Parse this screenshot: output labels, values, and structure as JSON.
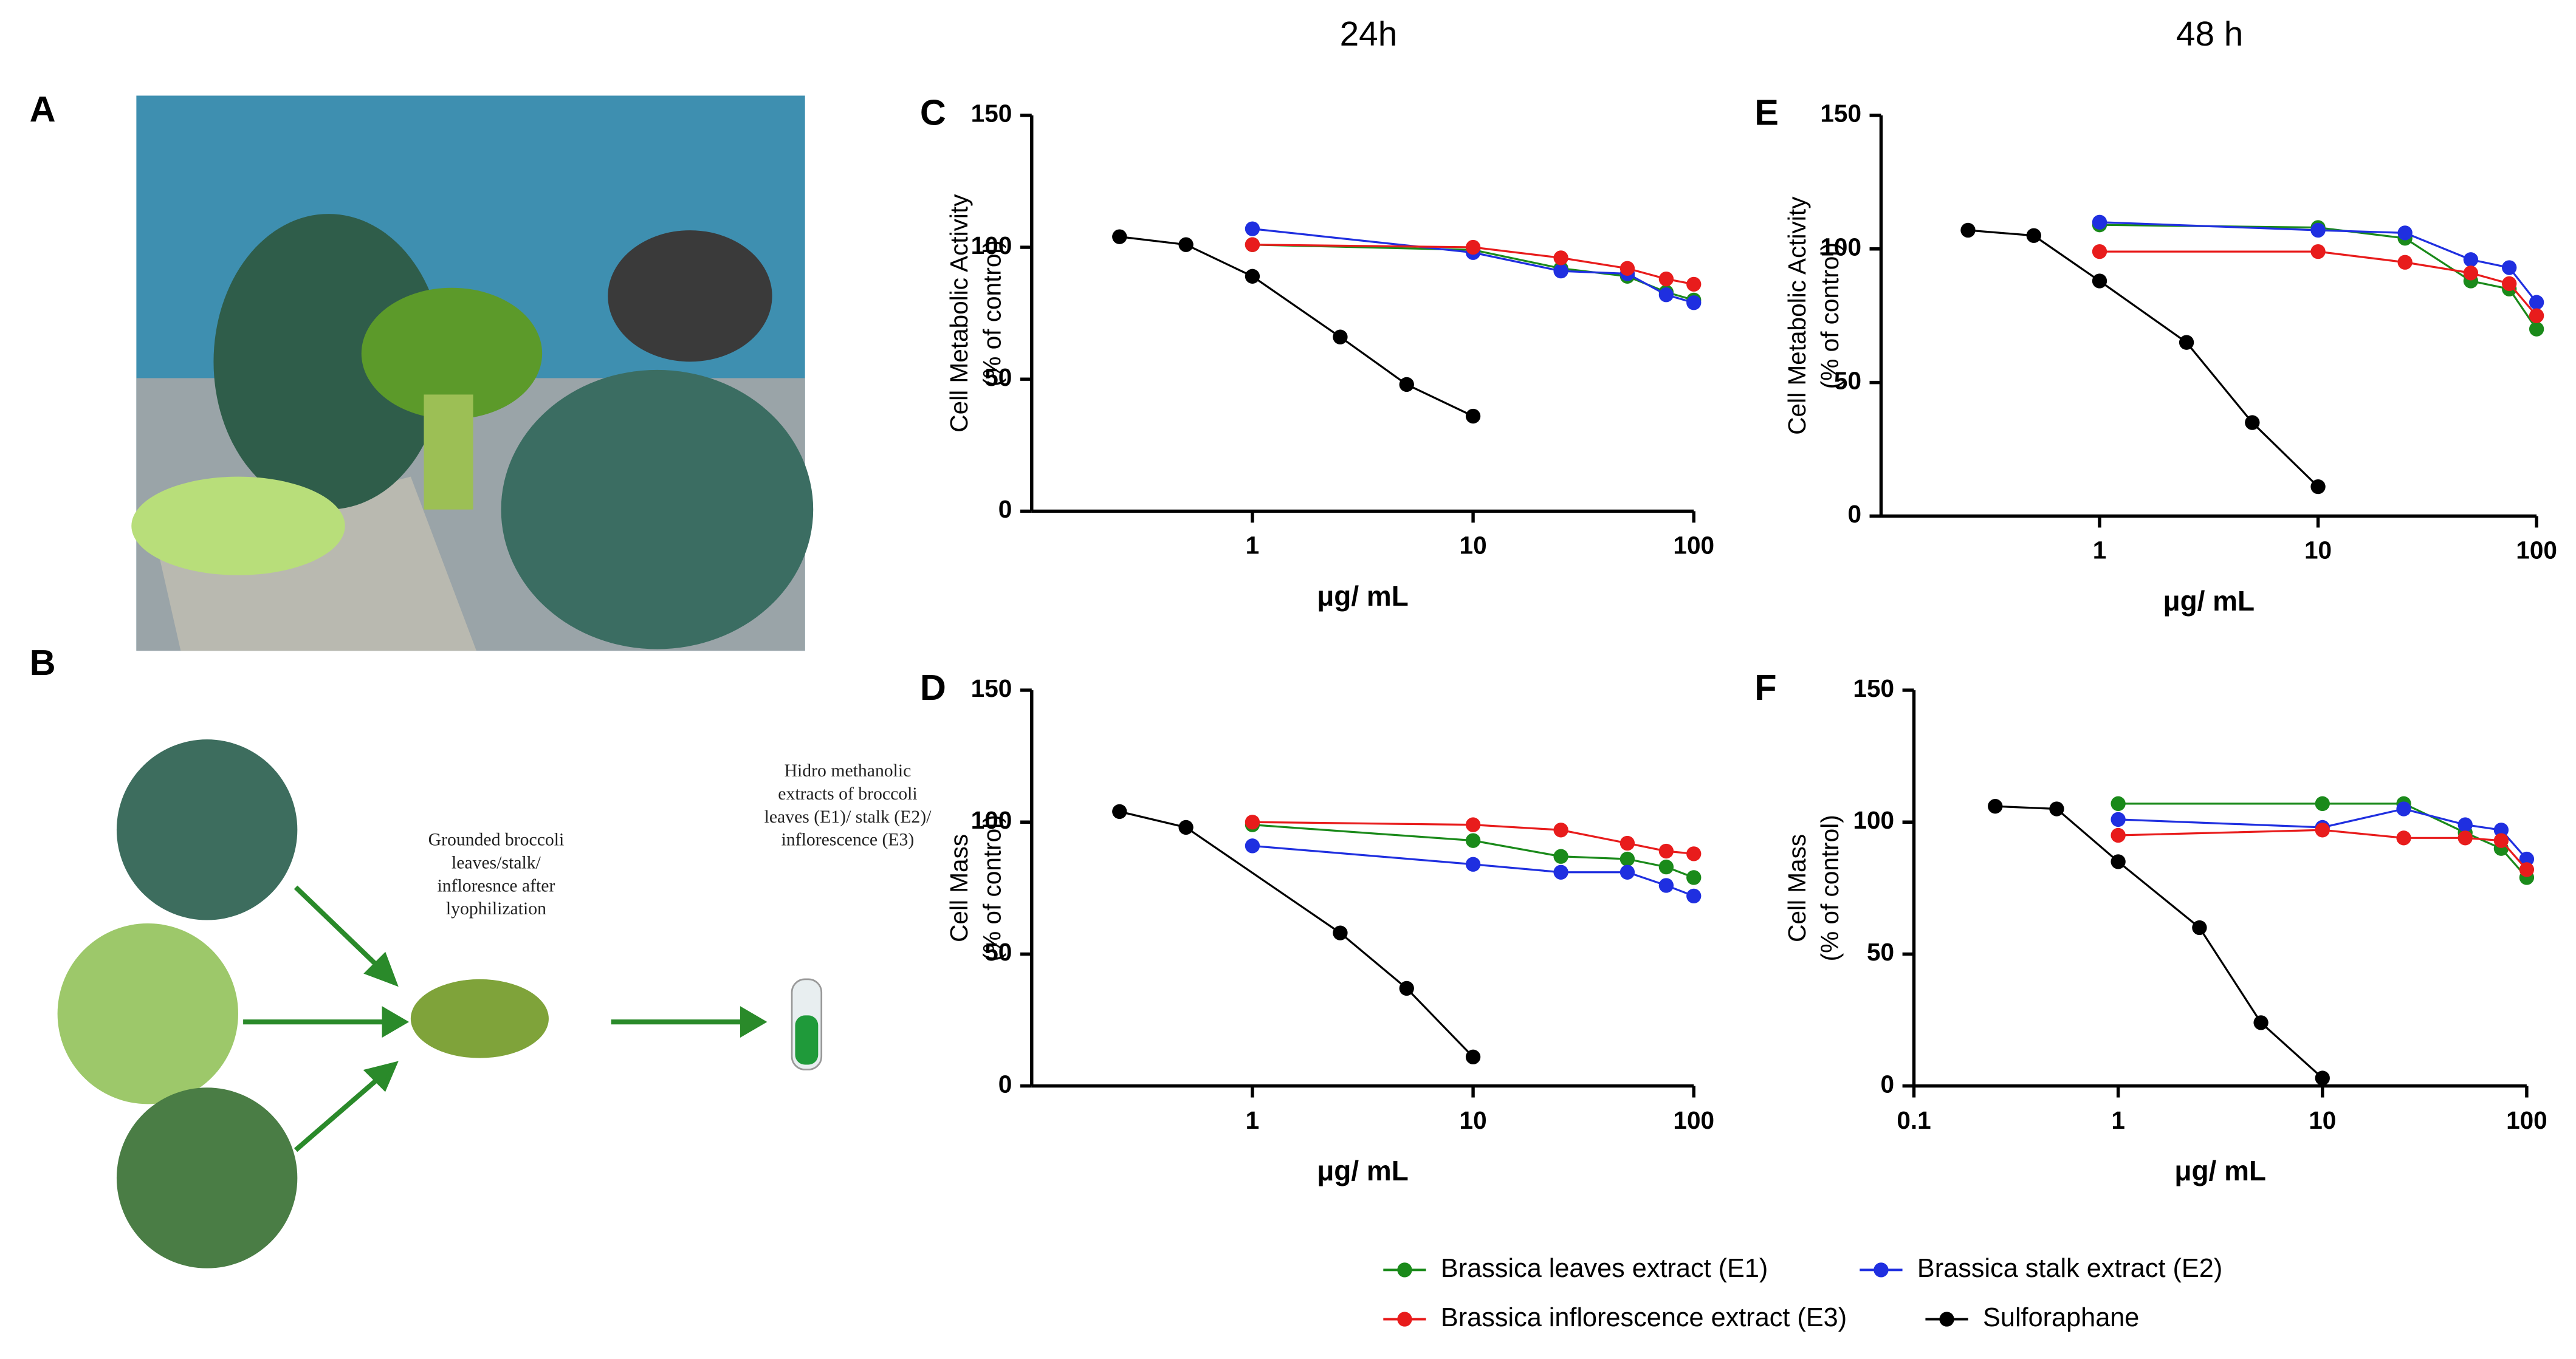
{
  "column_titles": [
    "24h",
    "48 h"
  ],
  "panel_labels": {
    "a": "A",
    "b": "B"
  },
  "diagram": {
    "powder_text": [
      "Grounded broccoli",
      "leaves/stalk/",
      "infloresnce after",
      "lyophilization"
    ],
    "extract_text": [
      "Hidro methanolic",
      "extracts of broccoli",
      "leaves (E1)/ stalk (E2)/",
      "inflorescence (E3)"
    ]
  },
  "chart_data": [
    {
      "type": "line",
      "panel": "C",
      "ylabel": [
        "Cell Metabolic Activity",
        "(% of control)"
      ],
      "xlabel": "μg/ mL",
      "xscale": "log",
      "xlim": [
        0.1,
        100
      ],
      "xticks": [
        1,
        10,
        100
      ],
      "ylim": [
        0,
        150
      ],
      "yticks": [
        0,
        50,
        100,
        150
      ],
      "series": [
        {
          "name": "Brassica leaves extract (E1)",
          "color": "#1a8a1a",
          "x": [
            1,
            10,
            25,
            50,
            75,
            100
          ],
          "values": [
            101,
            99,
            92,
            89,
            83,
            80
          ]
        },
        {
          "name": "Brassica stalk extract (E2)",
          "color": "#1f2fe0",
          "x": [
            1,
            10,
            25,
            50,
            75,
            100
          ],
          "values": [
            107,
            98,
            91,
            90,
            82,
            79
          ]
        },
        {
          "name": "Brassica inflorescence extract (E3)",
          "color": "#e81c1c",
          "x": [
            1,
            10,
            25,
            50,
            75,
            100
          ],
          "values": [
            101,
            100,
            96,
            92,
            88,
            86
          ]
        },
        {
          "name": "Sulforaphane",
          "color": "#000000",
          "x": [
            0.25,
            0.5,
            1,
            2.5,
            5,
            10
          ],
          "values": [
            104,
            101,
            89,
            66,
            48,
            36
          ]
        }
      ]
    },
    {
      "type": "line",
      "panel": "E",
      "ylabel": [
        "Cell Metabolic Activity",
        "(% of control)"
      ],
      "xlabel": "μg/ mL",
      "xscale": "log",
      "xlim": [
        0.1,
        100
      ],
      "xticks": [
        1,
        10,
        100
      ],
      "ylim": [
        0,
        150
      ],
      "yticks": [
        0,
        50,
        100,
        150
      ],
      "series": [
        {
          "name": "Brassica leaves extract (E1)",
          "color": "#1a8a1a",
          "x": [
            1,
            10,
            25,
            50,
            75,
            100
          ],
          "values": [
            109,
            108,
            104,
            88,
            85,
            70
          ]
        },
        {
          "name": "Brassica stalk extract (E2)",
          "color": "#1f2fe0",
          "x": [
            1,
            10,
            25,
            50,
            75,
            100
          ],
          "values": [
            110,
            107,
            106,
            96,
            93,
            80
          ]
        },
        {
          "name": "Brassica inflorescence extract (E3)",
          "color": "#e81c1c",
          "x": [
            1,
            10,
            25,
            50,
            75,
            100
          ],
          "values": [
            99,
            99,
            95,
            91,
            87,
            75
          ]
        },
        {
          "name": "Sulforaphane",
          "color": "#000000",
          "x": [
            0.25,
            0.5,
            1,
            2.5,
            5,
            10
          ],
          "values": [
            107,
            105,
            88,
            65,
            35,
            11
          ]
        }
      ]
    },
    {
      "type": "line",
      "panel": "D",
      "ylabel": [
        "Cell Mass",
        "(% of control)"
      ],
      "xlabel": "μg/ mL",
      "xscale": "log",
      "xlim": [
        0.1,
        100
      ],
      "xticks": [
        1,
        10,
        100
      ],
      "ylim": [
        0,
        150
      ],
      "yticks": [
        0,
        50,
        100,
        150
      ],
      "series": [
        {
          "name": "Brassica leaves extract (E1)",
          "color": "#1a8a1a",
          "x": [
            1,
            10,
            25,
            50,
            75,
            100
          ],
          "values": [
            99,
            93,
            87,
            86,
            83,
            79
          ]
        },
        {
          "name": "Brassica stalk extract (E2)",
          "color": "#1f2fe0",
          "x": [
            1,
            10,
            25,
            50,
            75,
            100
          ],
          "values": [
            91,
            84,
            81,
            81,
            76,
            72
          ]
        },
        {
          "name": "Brassica inflorescence extract (E3)",
          "color": "#e81c1c",
          "x": [
            1,
            10,
            25,
            50,
            75,
            100
          ],
          "values": [
            100,
            99,
            97,
            92,
            89,
            88
          ]
        },
        {
          "name": "Sulforaphane",
          "color": "#000000",
          "x": [
            0.25,
            0.5,
            2.5,
            5,
            10
          ],
          "values": [
            104,
            98,
            58,
            37,
            11
          ]
        }
      ]
    },
    {
      "type": "line",
      "panel": "F",
      "ylabel": [
        "Cell Mass",
        "(% of control)"
      ],
      "xlabel": "μg/ mL",
      "xscale": "log",
      "xlim": [
        0.1,
        100
      ],
      "xticks": [
        0.1,
        1,
        10,
        100
      ],
      "ylim": [
        0,
        150
      ],
      "yticks": [
        0,
        50,
        100,
        150
      ],
      "series": [
        {
          "name": "Brassica leaves extract (E1)",
          "color": "#1a8a1a",
          "x": [
            1,
            10,
            25,
            50,
            75,
            100
          ],
          "values": [
            107,
            107,
            107,
            96,
            90,
            79
          ]
        },
        {
          "name": "Brassica stalk extract (E2)",
          "color": "#1f2fe0",
          "x": [
            1,
            10,
            25,
            50,
            75,
            100
          ],
          "values": [
            101,
            98,
            105,
            99,
            97,
            86
          ]
        },
        {
          "name": "Brassica inflorescence extract (E3)",
          "color": "#e81c1c",
          "x": [
            1,
            10,
            25,
            50,
            75,
            100
          ],
          "values": [
            95,
            97,
            94,
            94,
            93,
            82
          ]
        },
        {
          "name": "Sulforaphane",
          "color": "#000000",
          "x": [
            0.25,
            0.5,
            1,
            2.5,
            5,
            10
          ],
          "values": [
            106,
            105,
            85,
            60,
            24,
            3
          ]
        }
      ]
    }
  ]
}
